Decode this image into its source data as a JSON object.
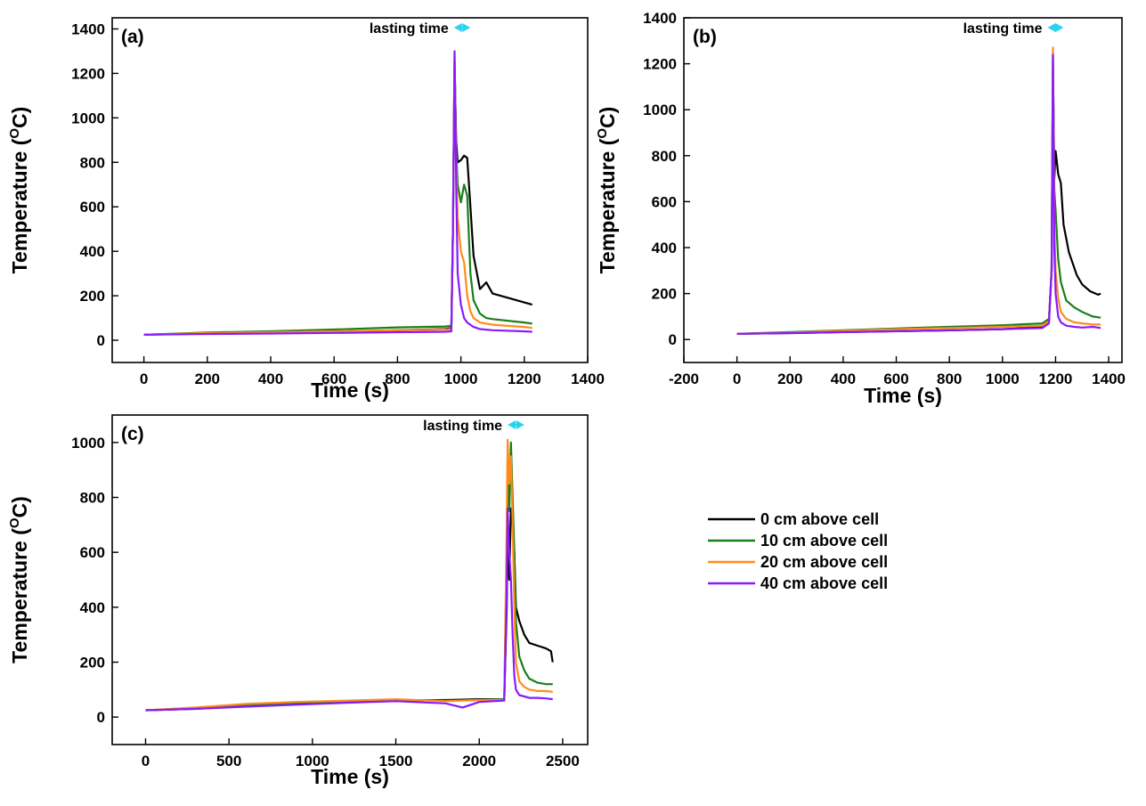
{
  "chart_data": [
    {
      "type": "line",
      "panel_label": "(a)",
      "annotation": "lasting time",
      "annotation_range": [
        978,
        1030
      ],
      "xlabel": "Time (s)",
      "ylabel_main": "Temperature (",
      "ylabel_sup": "O",
      "ylabel_end": "C)",
      "xlim": [
        -100,
        1400
      ],
      "ylim": [
        -100,
        1450
      ],
      "xticks": [
        0,
        200,
        400,
        600,
        800,
        1000,
        1200,
        1400
      ],
      "yticks": [
        0,
        200,
        400,
        600,
        800,
        1000,
        1200,
        1400
      ],
      "series": [
        {
          "name": "0 cm above cell",
          "color": "#000000",
          "x": [
            0,
            200,
            400,
            600,
            800,
            950,
            970,
            975,
            980,
            985,
            990,
            1000,
            1010,
            1020,
            1030,
            1040,
            1060,
            1080,
            1100,
            1150,
            1200,
            1225
          ],
          "y": [
            25,
            30,
            33,
            38,
            45,
            50,
            55,
            500,
            1250,
            900,
            800,
            810,
            830,
            820,
            600,
            380,
            230,
            260,
            210,
            190,
            170,
            160
          ]
        },
        {
          "name": "10 cm above cell",
          "color": "#1a7f1a",
          "x": [
            0,
            200,
            400,
            600,
            800,
            950,
            970,
            975,
            980,
            985,
            990,
            1000,
            1010,
            1020,
            1030,
            1040,
            1060,
            1080,
            1100,
            1200,
            1225
          ],
          "y": [
            25,
            35,
            40,
            48,
            58,
            62,
            65,
            500,
            1250,
            850,
            700,
            620,
            700,
            650,
            300,
            180,
            120,
            100,
            95,
            80,
            75
          ]
        },
        {
          "name": "20 cm above cell",
          "color": "#ff8c1a",
          "x": [
            0,
            200,
            400,
            600,
            800,
            950,
            970,
            975,
            980,
            985,
            990,
            1000,
            1010,
            1020,
            1030,
            1040,
            1060,
            1100,
            1200,
            1225
          ],
          "y": [
            25,
            32,
            36,
            40,
            45,
            48,
            50,
            500,
            1280,
            800,
            550,
            400,
            350,
            200,
            130,
            100,
            80,
            70,
            60,
            55
          ]
        },
        {
          "name": "40 cm above cell",
          "color": "#8a1aff",
          "x": [
            0,
            200,
            400,
            600,
            800,
            950,
            970,
            975,
            980,
            985,
            990,
            1000,
            1010,
            1020,
            1040,
            1060,
            1100,
            1200,
            1225
          ],
          "y": [
            25,
            28,
            30,
            33,
            36,
            38,
            40,
            500,
            1300,
            700,
            300,
            160,
            100,
            80,
            60,
            50,
            45,
            40,
            38
          ]
        }
      ]
    },
    {
      "type": "line",
      "panel_label": "(b)",
      "annotation": "lasting time",
      "annotation_range": [
        1170,
        1230
      ],
      "xlabel": "Time (s)",
      "ylabel_main": "Temperature (",
      "ylabel_sup": "O",
      "ylabel_end": "C)",
      "xlim": [
        -200,
        1450
      ],
      "ylim": [
        -100,
        1400
      ],
      "xticks": [
        -200,
        0,
        200,
        400,
        600,
        800,
        1000,
        1200,
        1400
      ],
      "yticks": [
        0,
        200,
        400,
        600,
        800,
        1000,
        1200,
        1400
      ],
      "series": [
        {
          "name": "0 cm above cell",
          "color": "#000000",
          "x": [
            0,
            200,
            400,
            600,
            800,
            1000,
            1150,
            1175,
            1185,
            1190,
            1195,
            1200,
            1210,
            1220,
            1230,
            1250,
            1280,
            1300,
            1330,
            1360,
            1370
          ],
          "y": [
            25,
            28,
            32,
            36,
            40,
            45,
            55,
            80,
            300,
            1200,
            700,
            820,
            720,
            680,
            500,
            380,
            280,
            240,
            210,
            195,
            200
          ]
        },
        {
          "name": "10 cm above cell",
          "color": "#1a7f1a",
          "x": [
            0,
            200,
            400,
            600,
            800,
            1000,
            1150,
            1175,
            1185,
            1190,
            1195,
            1200,
            1210,
            1220,
            1240,
            1270,
            1300,
            1340,
            1370
          ],
          "y": [
            25,
            32,
            40,
            48,
            55,
            62,
            70,
            90,
            300,
            1230,
            650,
            560,
            350,
            250,
            170,
            140,
            120,
            100,
            95
          ]
        },
        {
          "name": "20 cm above cell",
          "color": "#ff8c1a",
          "x": [
            0,
            200,
            400,
            600,
            800,
            1000,
            1150,
            1175,
            1185,
            1190,
            1195,
            1200,
            1210,
            1220,
            1240,
            1270,
            1300,
            1340,
            1370
          ],
          "y": [
            25,
            30,
            38,
            45,
            50,
            55,
            60,
            80,
            300,
            1270,
            500,
            300,
            180,
            120,
            90,
            75,
            70,
            65,
            65
          ]
        },
        {
          "name": "40 cm above cell",
          "color": "#8a1aff",
          "x": [
            0,
            200,
            400,
            600,
            800,
            1000,
            1150,
            1175,
            1185,
            1190,
            1195,
            1200,
            1210,
            1220,
            1240,
            1270,
            1300,
            1340,
            1370
          ],
          "y": [
            25,
            28,
            32,
            36,
            40,
            45,
            50,
            70,
            300,
            1240,
            400,
            200,
            100,
            75,
            60,
            55,
            52,
            55,
            50
          ]
        }
      ]
    },
    {
      "type": "line",
      "panel_label": "(c)",
      "annotation": "lasting time",
      "annotation_range": [
        2170,
        2270
      ],
      "xlabel": "Time (s)",
      "ylabel_main": "Temperature (",
      "ylabel_sup": "O",
      "ylabel_end": "C)",
      "xlim": [
        -200,
        2650
      ],
      "ylim": [
        -100,
        1100
      ],
      "xticks": [
        0,
        500,
        1000,
        1500,
        2000,
        2500
      ],
      "yticks": [
        0,
        200,
        400,
        600,
        800,
        1000
      ],
      "series": [
        {
          "name": "0 cm above cell",
          "color": "#000000",
          "x": [
            0,
            300,
            600,
            900,
            1200,
            1500,
            1800,
            2000,
            2150,
            2165,
            2170,
            2180,
            2190,
            2200,
            2210,
            2220,
            2240,
            2270,
            2300,
            2350,
            2400,
            2430,
            2440
          ],
          "y": [
            25,
            30,
            40,
            50,
            55,
            60,
            62,
            65,
            65,
            400,
            700,
            500,
            760,
            720,
            600,
            400,
            350,
            300,
            270,
            260,
            250,
            240,
            200
          ]
        },
        {
          "name": "10 cm above cell",
          "color": "#1a7f1a",
          "x": [
            0,
            300,
            600,
            900,
            1200,
            1500,
            1800,
            2000,
            2150,
            2165,
            2170,
            2180,
            2190,
            2200,
            2210,
            2220,
            2240,
            2270,
            2300,
            2350,
            2400,
            2440
          ],
          "y": [
            25,
            32,
            42,
            52,
            58,
            62,
            60,
            62,
            65,
            600,
            900,
            750,
            1000,
            800,
            600,
            350,
            220,
            170,
            140,
            125,
            120,
            120
          ]
        },
        {
          "name": "20 cm above cell",
          "color": "#ff8c1a",
          "x": [
            0,
            300,
            600,
            900,
            1200,
            1500,
            1800,
            2000,
            2150,
            2165,
            2170,
            2180,
            2190,
            2200,
            2210,
            2220,
            2240,
            2270,
            2300,
            2350,
            2400,
            2440
          ],
          "y": [
            25,
            35,
            48,
            55,
            60,
            65,
            58,
            62,
            62,
            700,
            1010,
            850,
            950,
            700,
            400,
            200,
            130,
            110,
            100,
            95,
            95,
            92
          ]
        },
        {
          "name": "40 cm above cell",
          "color": "#8a1aff",
          "x": [
            0,
            300,
            600,
            900,
            1200,
            1500,
            1800,
            1900,
            2000,
            2150,
            2165,
            2170,
            2180,
            2190,
            2200,
            2210,
            2220,
            2240,
            2270,
            2300,
            2350,
            2400,
            2440
          ],
          "y": [
            25,
            30,
            38,
            45,
            52,
            58,
            50,
            35,
            55,
            60,
            450,
            760,
            600,
            500,
            300,
            150,
            100,
            80,
            75,
            70,
            70,
            68,
            65
          ]
        }
      ]
    }
  ],
  "legend": [
    {
      "label": "0 cm above cell",
      "color": "#000000"
    },
    {
      "label": "10 cm above cell",
      "color": "#1a7f1a"
    },
    {
      "label": "20 cm above cell",
      "color": "#ff8c1a"
    },
    {
      "label": "40 cm above cell",
      "color": "#8a1aff"
    }
  ],
  "annotation_arrow_color": "#29d3f0"
}
